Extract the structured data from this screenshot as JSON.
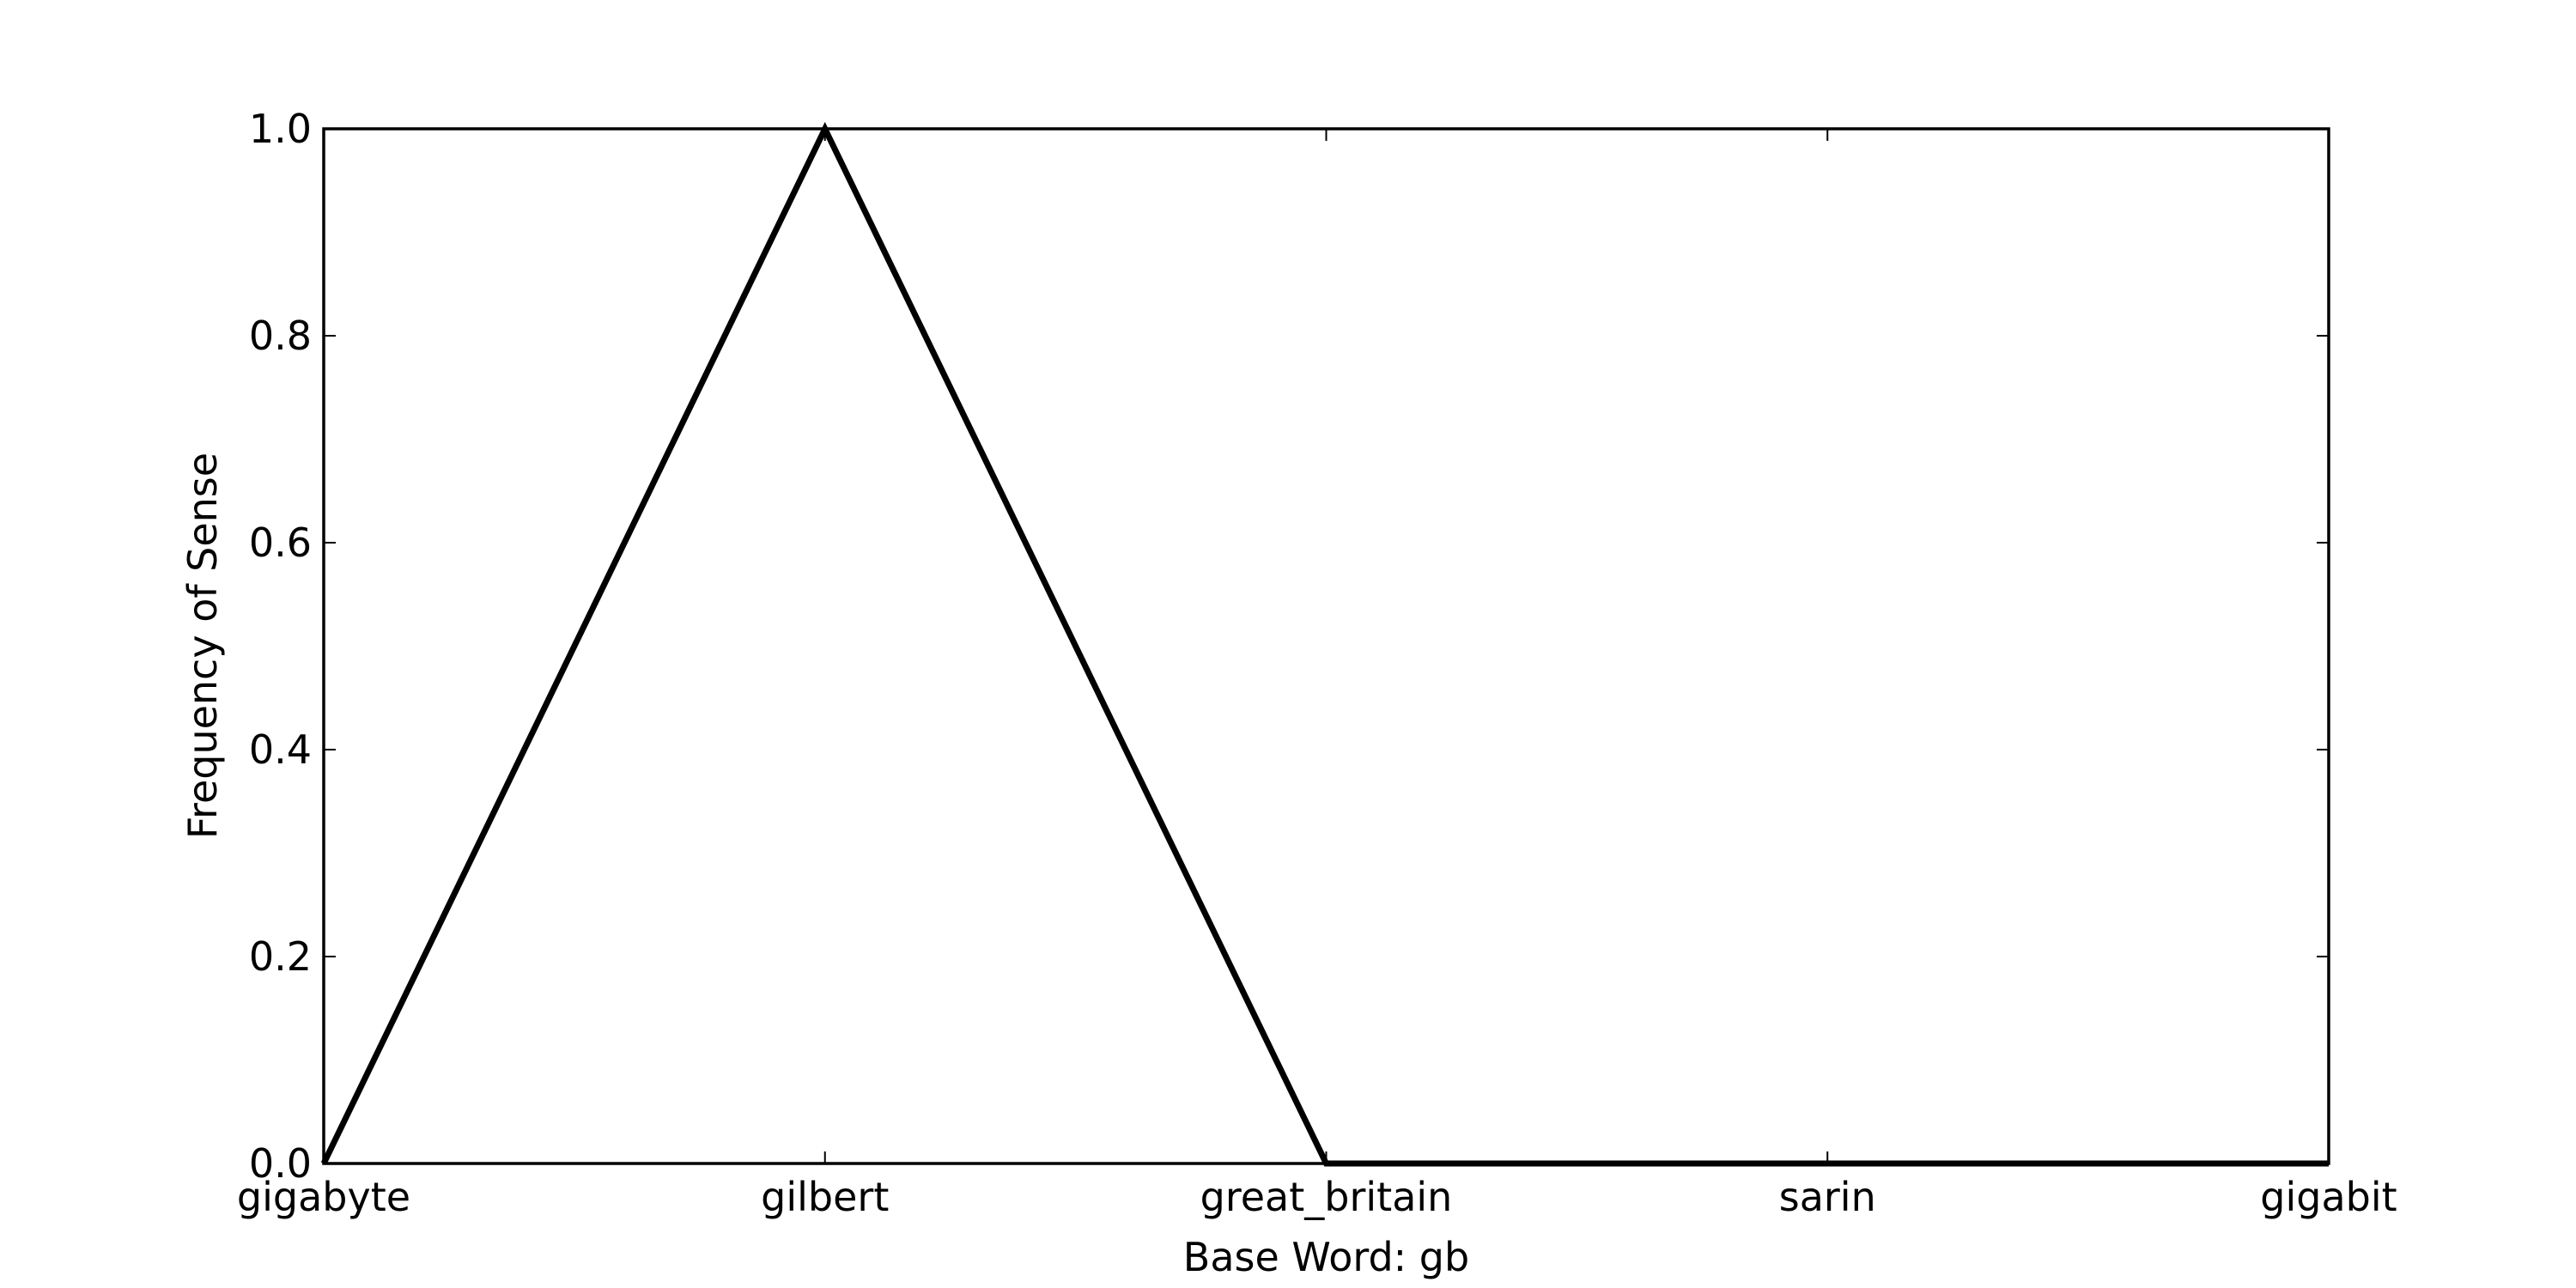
{
  "chart_data": {
    "type": "line",
    "categories": [
      "gigabyte",
      "gilbert",
      "great_britain",
      "sarin",
      "gigabit"
    ],
    "series": [
      {
        "values": [
          0.0,
          1.0,
          0.0,
          0.0,
          0.0
        ]
      }
    ],
    "xlabel": "Base Word: gb",
    "ylabel": "Frequency of Sense",
    "ylim": [
      0.0,
      1.0
    ],
    "yticks": [
      "0.0",
      "0.2",
      "0.4",
      "0.6",
      "0.8",
      "1.0"
    ],
    "grid": false,
    "line_color": "#000000"
  }
}
